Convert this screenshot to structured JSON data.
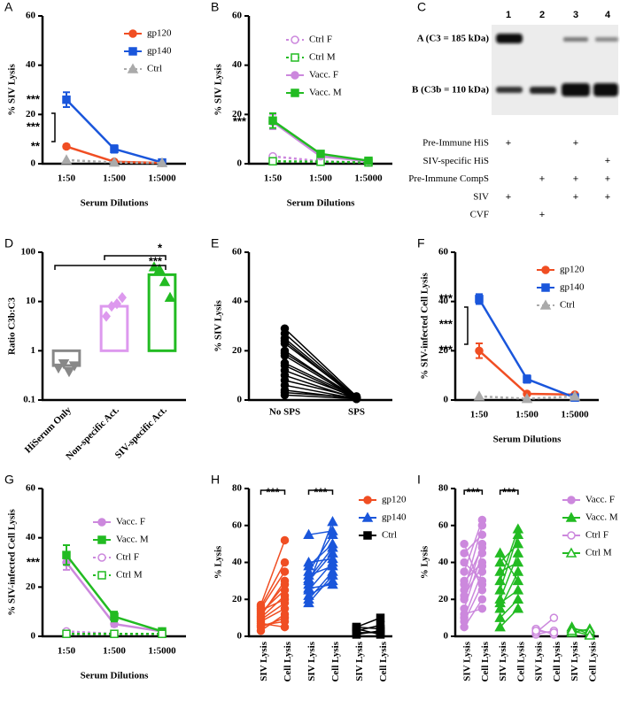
{
  "chart_data": [
    {
      "panel": "A",
      "type": "line",
      "ylabel": "% SIV Lysis",
      "xlabel": "Serum Dilutions",
      "categories": [
        "1:50",
        "1:500",
        "1:5000"
      ],
      "ylim": [
        0,
        60
      ],
      "yticks": [
        0,
        20,
        40,
        60
      ],
      "series": [
        {
          "name": "gp120",
          "color": "#f04e23",
          "marker": "circle",
          "values": [
            7,
            0.8,
            0.3
          ],
          "errors": [
            0.7,
            0.3,
            0.2
          ]
        },
        {
          "name": "gp140",
          "color": "#1a56db",
          "marker": "square",
          "values": [
            26,
            6,
            0.5
          ],
          "errors": [
            3,
            1.5,
            0.3
          ]
        },
        {
          "name": "Ctrl",
          "color": "#aaaaaa",
          "marker": "triangle",
          "dashed": true,
          "values": [
            1.5,
            0.5,
            0.3
          ]
        }
      ],
      "annotations": [
        "***",
        "***",
        "**"
      ]
    },
    {
      "panel": "B",
      "type": "line",
      "ylabel": "% SIV Lysis",
      "xlabel": "Serum Dilutions",
      "categories": [
        "1:50",
        "1:500",
        "1:5000"
      ],
      "ylim": [
        0,
        60
      ],
      "yticks": [
        0,
        20,
        40,
        60
      ],
      "series": [
        {
          "name": "Ctrl F",
          "color": "#cc88dd",
          "marker": "circle",
          "open": true,
          "dashed": true,
          "values": [
            3,
            1,
            0.5
          ]
        },
        {
          "name": "Ctrl M",
          "color": "#22bb22",
          "marker": "square",
          "open": true,
          "dashed": true,
          "values": [
            1,
            0.8,
            0.5
          ]
        },
        {
          "name": "Vacc. F",
          "color": "#cc88dd",
          "marker": "circle",
          "values": [
            17,
            3,
            1
          ],
          "errors": [
            3,
            1,
            0.3
          ]
        },
        {
          "name": "Vacc. M",
          "color": "#22bb22",
          "marker": "square",
          "values": [
            17.5,
            4,
            1.2
          ],
          "errors": [
            3,
            1,
            0.3
          ]
        }
      ],
      "annotations": [
        "***"
      ]
    },
    {
      "panel": "C",
      "type": "blot",
      "lanes": [
        1,
        2,
        3,
        4
      ],
      "band_labels": [
        "A (C3 = 185 kDa)",
        "B (C3b = 110 kDa)"
      ],
      "rows": [
        {
          "label": "Pre-Immune HiS",
          "signs": [
            "+",
            null,
            "+",
            null
          ]
        },
        {
          "label": "SIV-specific HiS",
          "signs": [
            null,
            null,
            null,
            "+"
          ]
        },
        {
          "label": "Pre-Immune CompS",
          "signs": [
            null,
            "+",
            "+",
            "+"
          ]
        },
        {
          "label": "SIV",
          "signs": [
            "+",
            null,
            "+",
            "+"
          ]
        },
        {
          "label": "CVF",
          "signs": [
            null,
            "+",
            null,
            null
          ]
        }
      ]
    },
    {
      "panel": "D",
      "type": "bar",
      "ylabel": "Ratio C3b:C3",
      "log_scale": true,
      "categories": [
        "HiSerum Only",
        "Non-specific Act.",
        "SIV-specific Act."
      ],
      "values": [
        0.5,
        8,
        35
      ],
      "colors": [
        "#888888",
        "#dd99ee",
        "#22bb22"
      ],
      "markers": [
        "triangle-down",
        "diamond",
        "triangle"
      ],
      "points": [
        [
          0.45,
          0.55,
          0.38,
          0.5
        ],
        [
          5,
          8,
          9,
          12
        ],
        [
          50,
          45,
          25,
          12
        ]
      ],
      "ylim": [
        0.1,
        100
      ],
      "yticks": [
        0.1,
        1,
        10,
        100
      ],
      "annotations": [
        "*",
        "***"
      ]
    },
    {
      "panel": "E",
      "type": "paired",
      "ylabel": "% SIV Lysis",
      "categories": [
        "No SPS",
        "SPS"
      ],
      "ylim": [
        0,
        60
      ],
      "yticks": [
        0,
        20,
        40,
        60
      ],
      "series": [
        {
          "color": "#000000",
          "marker": "circle",
          "x": [
            0,
            1
          ],
          "pairs": [
            [
              29,
              1.5
            ],
            [
              27,
              1
            ],
            [
              25,
              1
            ],
            [
              24,
              0.5
            ],
            [
              23,
              1
            ],
            [
              20,
              0.5
            ],
            [
              19,
              1
            ],
            [
              18,
              0.5
            ],
            [
              15,
              1
            ],
            [
              14,
              0.5
            ],
            [
              12,
              1
            ],
            [
              10,
              0.5
            ],
            [
              8,
              1
            ],
            [
              6,
              0.5
            ],
            [
              4,
              0.5
            ],
            [
              3,
              1
            ],
            [
              2,
              0.5
            ]
          ]
        }
      ]
    },
    {
      "panel": "F",
      "type": "line",
      "ylabel": "% SIV-infected Cell Lysis",
      "xlabel": "Serum Dilutions",
      "categories": [
        "1:50",
        "1:500",
        "1:5000"
      ],
      "ylim": [
        0,
        60
      ],
      "yticks": [
        0,
        20,
        40,
        60
      ],
      "series": [
        {
          "name": "gp120",
          "color": "#f04e23",
          "marker": "circle",
          "values": [
            20,
            2.5,
            2.2
          ],
          "errors": [
            3,
            0.5,
            0.5
          ]
        },
        {
          "name": "gp140",
          "color": "#1a56db",
          "marker": "square",
          "values": [
            41,
            8.5,
            1
          ],
          "errors": [
            2,
            1.5,
            0.5
          ]
        },
        {
          "name": "Ctrl",
          "color": "#aaaaaa",
          "marker": "triangle",
          "dashed": true,
          "values": [
            1.5,
            0.5,
            1.5
          ]
        }
      ],
      "annotations": [
        "***",
        "***",
        "***"
      ]
    },
    {
      "panel": "G",
      "type": "line",
      "ylabel": "% SIV-infected Cell Lysis",
      "xlabel": "Serum Dilutions",
      "categories": [
        "1:50",
        "1:500",
        "1:5000"
      ],
      "ylim": [
        0,
        60
      ],
      "yticks": [
        0,
        20,
        40,
        60
      ],
      "series": [
        {
          "name": "Vacc. F",
          "color": "#cc88dd",
          "marker": "circle",
          "values": [
            30,
            5,
            2
          ],
          "errors": [
            3,
            1,
            0.5
          ]
        },
        {
          "name": "Vacc. M",
          "color": "#22bb22",
          "marker": "square",
          "values": [
            33,
            8,
            2
          ],
          "errors": [
            4,
            2,
            0.5
          ]
        },
        {
          "name": "Ctrl F",
          "color": "#cc88dd",
          "marker": "circle",
          "open": true,
          "dashed": true,
          "values": [
            2,
            1,
            1
          ]
        },
        {
          "name": "Ctrl M",
          "color": "#22bb22",
          "marker": "square",
          "open": true,
          "dashed": true,
          "values": [
            1,
            1,
            1
          ]
        }
      ],
      "annotations": [
        "***"
      ]
    },
    {
      "panel": "H",
      "type": "paired",
      "ylabel": "% Lysis",
      "categories": [
        "SIV Lysis",
        "Cell Lysis",
        "SIV Lysis",
        "Cell Lysis",
        "SIV Lysis",
        "Cell Lysis"
      ],
      "ylim": [
        0,
        80
      ],
      "yticks": [
        0,
        20,
        40,
        60,
        80
      ],
      "series": [
        {
          "name": "gp120",
          "color": "#f04e23",
          "marker": "circle",
          "x": [
            0,
            1
          ],
          "pairs": [
            [
              5,
              10
            ],
            [
              8,
              15
            ],
            [
              10,
              22
            ],
            [
              12,
              28
            ],
            [
              15,
              35
            ],
            [
              17,
              52
            ],
            [
              6,
              8
            ],
            [
              9,
              18
            ],
            [
              13,
              25
            ],
            [
              3,
              12
            ],
            [
              16,
              40
            ],
            [
              11,
              30
            ],
            [
              7,
              5
            ],
            [
              14,
              20
            ]
          ]
        },
        {
          "name": "gp140",
          "color": "#1a56db",
          "marker": "triangle",
          "x": [
            2,
            3
          ],
          "pairs": [
            [
              20,
              35
            ],
            [
              25,
              40
            ],
            [
              30,
              45
            ],
            [
              35,
              55
            ],
            [
              22,
              30
            ],
            [
              28,
              62
            ],
            [
              33,
              38
            ],
            [
              38,
              50
            ],
            [
              40,
              42
            ],
            [
              26,
              28
            ],
            [
              55,
              57
            ],
            [
              18,
              33
            ],
            [
              31,
              48
            ]
          ]
        },
        {
          "name": "Ctrl",
          "color": "#000000",
          "marker": "square",
          "x": [
            4,
            5
          ],
          "pairs": [
            [
              5,
              10
            ],
            [
              3,
              6
            ],
            [
              2,
              2
            ],
            [
              4,
              1
            ],
            [
              1,
              3
            ],
            [
              5,
              4
            ]
          ]
        }
      ],
      "annotations": [
        "***",
        "***"
      ]
    },
    {
      "panel": "I",
      "type": "paired",
      "ylabel": "% Lysis",
      "categories": [
        "SIV Lysis",
        "Cell Lysis",
        "SIV Lysis",
        "Cell Lysis",
        "SIV Lysis",
        "Cell Lysis",
        "SIV Lysis",
        "Cell Lysis"
      ],
      "ylim": [
        0,
        80
      ],
      "yticks": [
        0,
        20,
        40,
        60,
        80
      ],
      "series": [
        {
          "name": "Vacc. F",
          "color": "#cc88dd",
          "marker": "circle",
          "x": [
            0,
            1
          ],
          "pairs": [
            [
              5,
              20
            ],
            [
              10,
              35
            ],
            [
              15,
              45
            ],
            [
              20,
              50
            ],
            [
              25,
              60
            ],
            [
              30,
              40
            ],
            [
              35,
              63
            ],
            [
              40,
              30
            ],
            [
              45,
              55
            ],
            [
              50,
              25
            ],
            [
              12,
              15
            ],
            [
              8,
              28
            ],
            [
              22,
              38
            ],
            [
              28,
              48
            ]
          ]
        },
        {
          "name": "Vacc. M",
          "color": "#22bb22",
          "marker": "triangle",
          "x": [
            2,
            3
          ],
          "pairs": [
            [
              10,
              20
            ],
            [
              15,
              35
            ],
            [
              20,
              45
            ],
            [
              25,
              55
            ],
            [
              30,
              58
            ],
            [
              35,
              40
            ],
            [
              40,
              50
            ],
            [
              45,
              30
            ],
            [
              5,
              15
            ],
            [
              18,
              25
            ]
          ]
        },
        {
          "name": "Ctrl F",
          "color": "#cc88dd",
          "marker": "circle",
          "open": true,
          "x": [
            4,
            5
          ],
          "pairs": [
            [
              1,
              3
            ],
            [
              2,
              10
            ],
            [
              4,
              1
            ],
            [
              3,
              2
            ]
          ]
        },
        {
          "name": "Ctrl M",
          "color": "#22bb22",
          "marker": "triangle",
          "open": true,
          "x": [
            6,
            7
          ],
          "pairs": [
            [
              2,
              4
            ],
            [
              5,
              1
            ],
            [
              4,
              3
            ],
            [
              3,
              0.5
            ]
          ]
        }
      ],
      "annotations": [
        "***",
        "***"
      ]
    }
  ]
}
